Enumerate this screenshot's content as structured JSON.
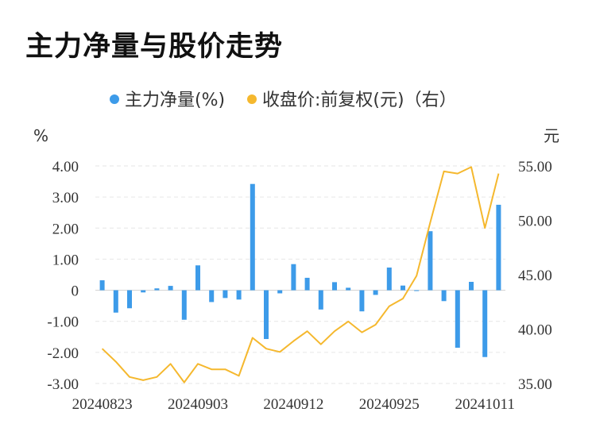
{
  "title": "主力净量与股价走势",
  "chart_data": {
    "type": "bar+line",
    "legend": [
      {
        "label": "主力净量(%)",
        "color": "#3d9be9"
      },
      {
        "label": "收盘价:前复权(元)（右）",
        "color": "#f5b82e"
      }
    ],
    "y_left_unit": "%",
    "y_right_unit": "元",
    "y_left_ticks": [
      "4.00",
      "3.00",
      "2.00",
      "1.00",
      "0",
      "-1.00",
      "-2.00",
      "-3.00"
    ],
    "y_right_ticks": [
      "55.00",
      "50.00",
      "45.00",
      "40.00",
      "35.00"
    ],
    "y_left_range": [
      -3,
      4
    ],
    "y_right_range": [
      35,
      55
    ],
    "x_tick_labels": [
      {
        "index": 0,
        "label": "20240823"
      },
      {
        "index": 7,
        "label": "20240903"
      },
      {
        "index": 14,
        "label": "20240912"
      },
      {
        "index": 21,
        "label": "20240925"
      },
      {
        "index": 28,
        "label": "20241011"
      }
    ],
    "bars": [
      0.32,
      -0.72,
      -0.58,
      -0.07,
      0.06,
      0.14,
      -0.95,
      0.8,
      -0.38,
      -0.25,
      -0.3,
      3.42,
      -1.57,
      -0.1,
      0.84,
      0.4,
      -0.62,
      0.26,
      0.08,
      -0.68,
      -0.15,
      0.73,
      0.15,
      -0.02,
      1.9,
      -0.35,
      -1.85,
      0.27,
      -2.15,
      2.75
    ],
    "price": [
      38.2,
      37.0,
      35.6,
      35.3,
      35.6,
      36.8,
      35.1,
      36.8,
      36.3,
      36.3,
      35.7,
      39.2,
      38.2,
      37.9,
      38.9,
      39.8,
      38.6,
      39.8,
      40.7,
      39.7,
      40.4,
      42.1,
      42.8,
      44.9,
      49.8,
      54.5,
      54.3,
      54.9,
      49.3,
      54.3
    ]
  }
}
